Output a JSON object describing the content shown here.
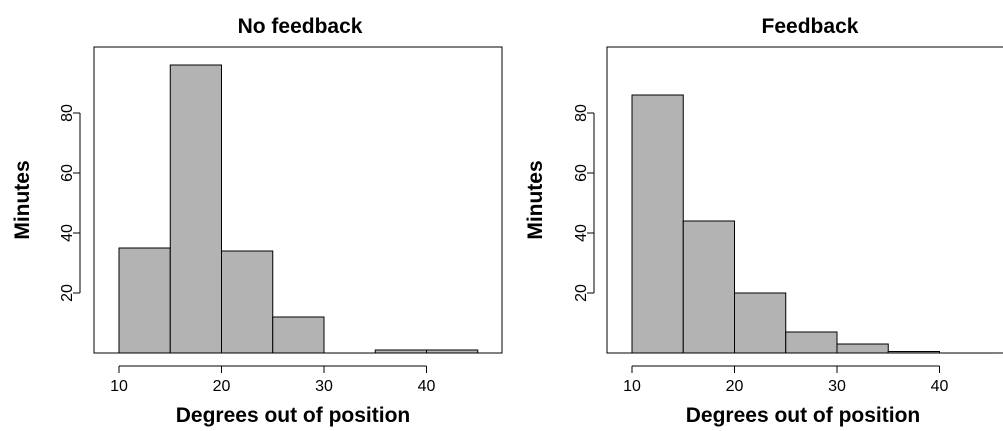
{
  "chart_data": [
    {
      "type": "bar",
      "title": "No feedback",
      "xlabel": "Degrees out of position",
      "ylabel": "Minutes",
      "bins": [
        [
          10,
          15
        ],
        [
          15,
          20
        ],
        [
          20,
          25
        ],
        [
          25,
          30
        ],
        [
          30,
          35
        ],
        [
          35,
          40
        ],
        [
          40,
          45
        ]
      ],
      "values": [
        35,
        96,
        34,
        12,
        0,
        1,
        1
      ],
      "xlim": [
        10,
        45
      ],
      "ylim": [
        0,
        100
      ],
      "xticks": [
        10,
        20,
        30,
        40
      ],
      "yticks": [
        20,
        40,
        60,
        80
      ],
      "grid": false,
      "bar_color": "#b3b3b3"
    },
    {
      "type": "bar",
      "title": "Feedback",
      "xlabel": "Degrees out of position",
      "ylabel": "Minutes",
      "bins": [
        [
          10,
          15
        ],
        [
          15,
          20
        ],
        [
          20,
          25
        ],
        [
          25,
          30
        ],
        [
          30,
          35
        ],
        [
          35,
          40
        ],
        [
          40,
          45
        ]
      ],
      "values": [
        86,
        44,
        20,
        7,
        3,
        0.5,
        0
      ],
      "xlim": [
        10,
        45
      ],
      "ylim": [
        0,
        100
      ],
      "xticks": [
        10,
        20,
        30,
        40
      ],
      "yticks": [
        20,
        40,
        60,
        80
      ],
      "grid": false,
      "bar_color": "#b3b3b3"
    }
  ]
}
